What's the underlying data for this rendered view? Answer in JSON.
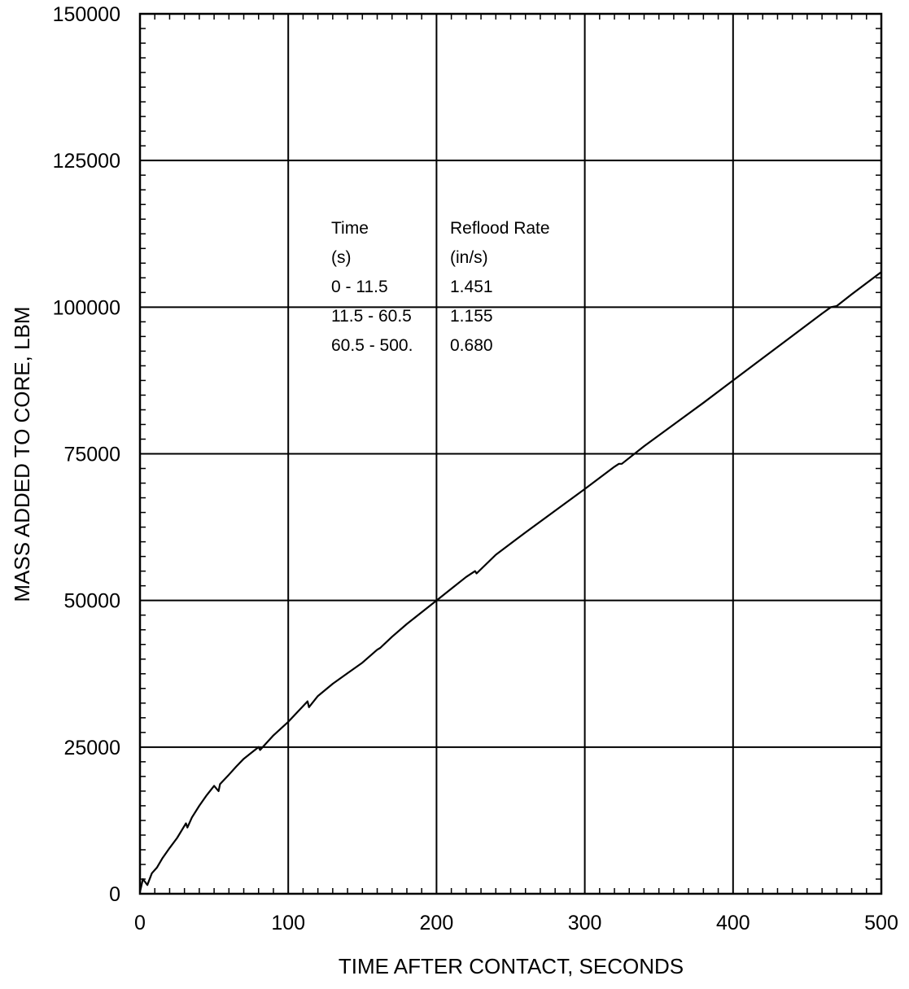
{
  "chart_data": {
    "type": "line",
    "title": "",
    "xlabel": "TIME AFTER CONTACT, SECONDS",
    "ylabel": "MASS ADDED TO CORE, LBM",
    "xlim": [
      0,
      500
    ],
    "ylim": [
      0,
      150000
    ],
    "x_ticks": [
      "0",
      "100",
      "200",
      "300",
      "400",
      "500"
    ],
    "y_ticks": [
      "0",
      "25000",
      "50000",
      "75000",
      "100000",
      "125000",
      "150000"
    ],
    "grid": true,
    "legend": "none",
    "line_color": "#000000",
    "series": [
      {
        "x": [
          0,
          2,
          5,
          8,
          11.5,
          15,
          20,
          25,
          31,
          32,
          35,
          40,
          45,
          50,
          53,
          54,
          60,
          65,
          70,
          75,
          80,
          81,
          90,
          100,
          113,
          114,
          120,
          130,
          140,
          150,
          160,
          162,
          170,
          180,
          190,
          200,
          210,
          220,
          226,
          227,
          240,
          260,
          280,
          300,
          320,
          323,
          325,
          340,
          360,
          380,
          400,
          420,
          440,
          460,
          466,
          470,
          480,
          500
        ],
        "y": [
          300,
          2500,
          1500,
          3500,
          4500,
          6000,
          7800,
          9500,
          12000,
          11300,
          13000,
          15000,
          16800,
          18400,
          17500,
          18700,
          20300,
          21700,
          23000,
          24000,
          25000,
          24500,
          27000,
          29300,
          32800,
          31800,
          33700,
          35800,
          37600,
          39400,
          41600,
          41900,
          43800,
          46000,
          48000,
          50000,
          52000,
          54000,
          55000,
          54600,
          57800,
          61600,
          65300,
          69000,
          72800,
          73300,
          73300,
          76300,
          80000,
          83700,
          87500,
          91300,
          95100,
          98900,
          100000,
          100200,
          102200,
          106000
        ]
      }
    ],
    "annotation_table": {
      "headers": [
        "Time",
        "Reflood Rate"
      ],
      "units": [
        "(s)",
        "(in/s)"
      ],
      "rows": [
        [
          "0 - 11.5",
          "1.451"
        ],
        [
          "11.5 - 60.5",
          "1.155"
        ],
        [
          "60.5 - 500.",
          "0.680"
        ]
      ]
    }
  }
}
